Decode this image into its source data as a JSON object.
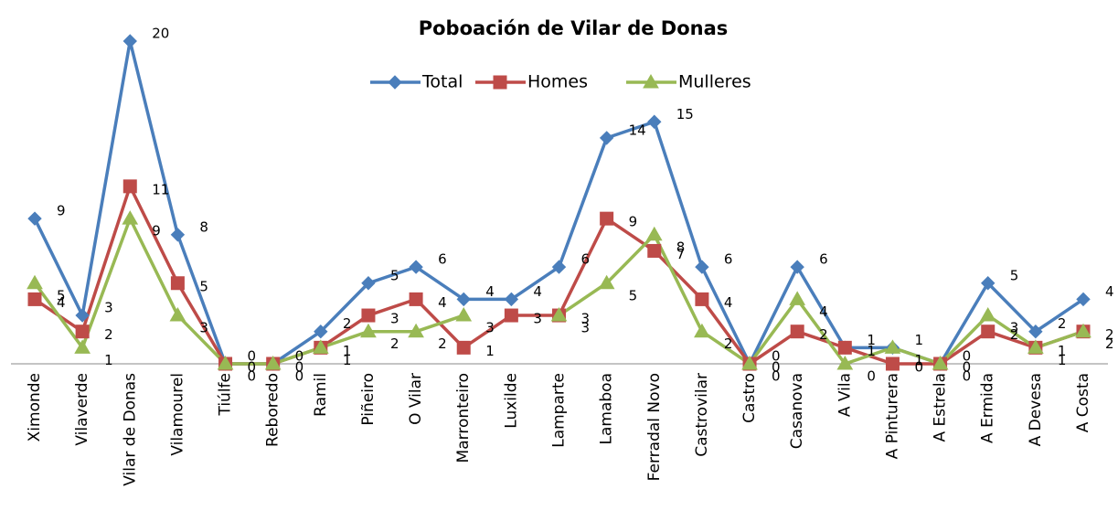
{
  "chart_data": {
    "type": "line",
    "title": "Poboación de Vilar de Donas",
    "categories": [
      "Ximonde",
      "Vilaverde",
      "Vilar de Donas",
      "Vilamourel",
      "Tiúlfe",
      "Reboredo",
      "Ramil",
      "Piñeiro",
      "O Vilar",
      "Marronteiro",
      "Luxilde",
      "Lamparte",
      "Lamaboa",
      "Ferradal Novo",
      "Castrovilar",
      "Castro",
      "Casanova",
      "A Vila",
      "A Pinturera",
      "A Estrela",
      "A Ermida",
      "A Devesa",
      "A Costa"
    ],
    "series": [
      {
        "name": "Total",
        "color": "#4a7ebb",
        "marker": "diamond",
        "values": [
          9,
          3,
          20,
          8,
          0,
          0,
          2,
          5,
          6,
          4,
          4,
          6,
          14,
          15,
          6,
          0,
          6,
          1,
          1,
          0,
          5,
          2,
          4
        ]
      },
      {
        "name": "Homes",
        "color": "#be4b48",
        "marker": "square",
        "values": [
          4,
          2,
          11,
          5,
          0,
          0,
          1,
          3,
          4,
          1,
          3,
          3,
          9,
          7,
          4,
          0,
          2,
          1,
          0,
          0,
          2,
          1,
          2
        ]
      },
      {
        "name": "Mulleres",
        "color": "#98b954",
        "marker": "triangle",
        "values": [
          5,
          1,
          9,
          3,
          0,
          0,
          1,
          2,
          2,
          3,
          null,
          3,
          5,
          8,
          2,
          0,
          4,
          0,
          1,
          0,
          3,
          1,
          2
        ]
      }
    ],
    "ylim": [
      0,
      20
    ],
    "legend": "top"
  }
}
